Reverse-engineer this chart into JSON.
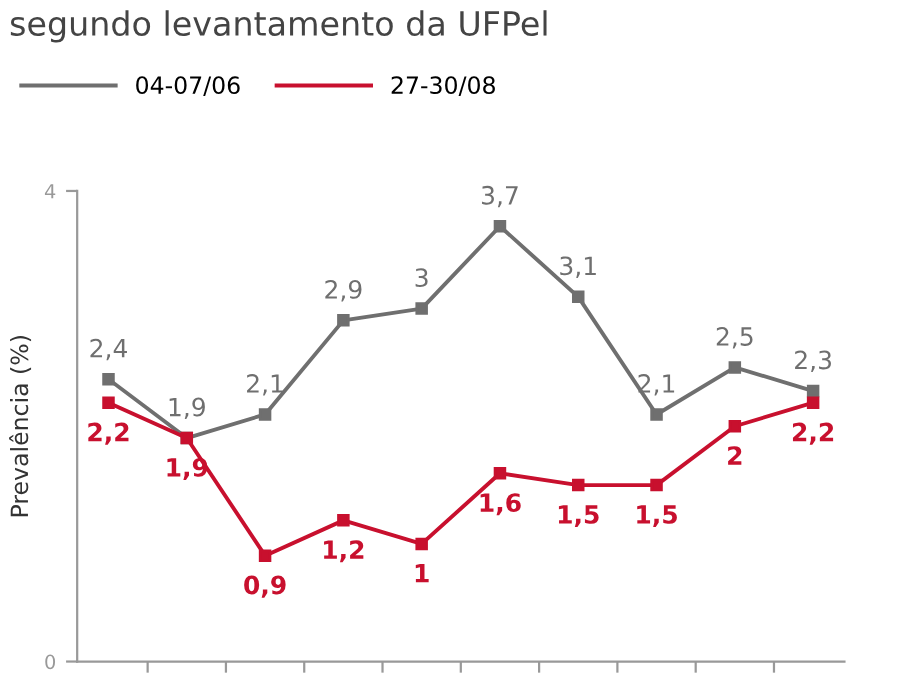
{
  "chart_data": {
    "type": "line",
    "title": "segundo levantamento da UFPel",
    "ylabel": "Prevalência (%)",
    "categories": [
      null,
      null,
      null,
      null,
      null,
      null,
      null,
      null,
      null,
      null
    ],
    "series": [
      {
        "name": "04-07/06",
        "color": "#6f6f6f",
        "values": [
          2.4,
          1.9,
          2.1,
          2.9,
          3,
          3.7,
          3.1,
          2.1,
          2.5,
          2.3
        ],
        "value_labels": [
          "2,4",
          "1,9",
          "2,1",
          "2,9",
          "3",
          "3,7",
          "3,1",
          "2,1",
          "2,5",
          "2,3"
        ]
      },
      {
        "name": "27-30/08",
        "color": "#c8102e",
        "values": [
          2.2,
          1.9,
          0.9,
          1.2,
          1,
          1.6,
          1.5,
          1.5,
          2,
          2.2
        ],
        "value_labels": [
          "2,2",
          "1,9",
          "0,9",
          "1,2",
          "1",
          "1,6",
          "1,5",
          "1,5",
          "2",
          "2,2"
        ]
      }
    ],
    "ylim": [
      0,
      4
    ],
    "yticks": [
      0,
      4
    ],
    "grid": false,
    "legend": "top left",
    "marker": "square",
    "line_style": "solid"
  }
}
